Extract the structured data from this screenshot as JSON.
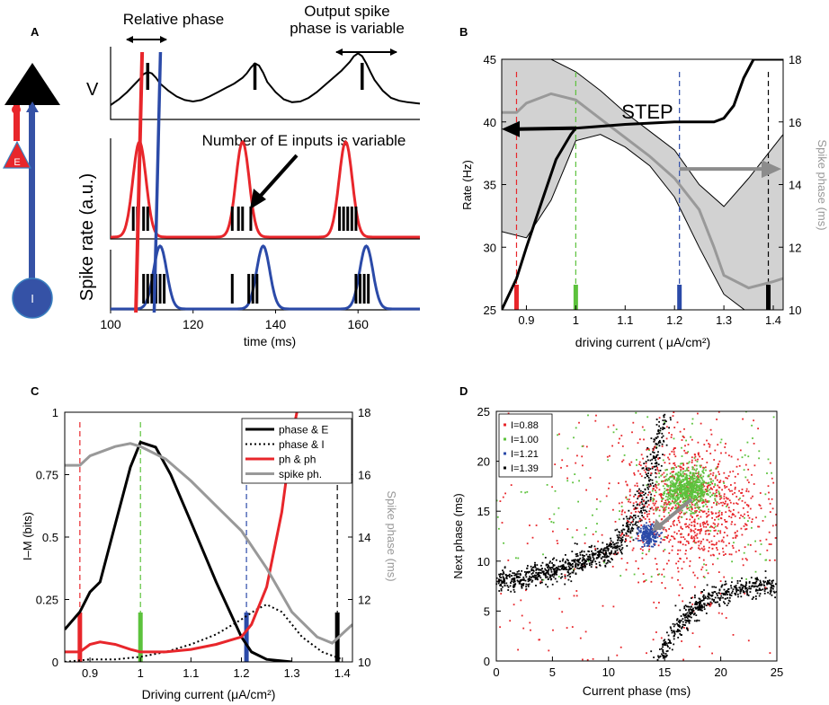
{
  "panel_labels": {
    "a": "A",
    "b": "B",
    "c": "C",
    "d": "D"
  },
  "colors": {
    "red": "#e8262b",
    "blue": "#2b4aa8",
    "green": "#5cc23c",
    "black": "#000000",
    "gray": "#999999",
    "shade": "#d2d2d2"
  },
  "chart_data": [
    {
      "id": "A",
      "type": "line",
      "title": "",
      "annotations": {
        "relative_phase": "Relative phase",
        "output_phase_1": "Output spike",
        "output_phase_2": "phase is variable",
        "num_inputs": "Number of E inputs is variable"
      },
      "neuron": {
        "e_label": "E",
        "i_label": "I"
      },
      "xlabel": "time (ms)",
      "ylabel": "Spike rate (a.u.)",
      "v_label": "V",
      "xlim": [
        100,
        175
      ],
      "xticks": [
        100,
        120,
        140,
        160
      ],
      "voltage": {
        "x": [
          100,
          102,
          104,
          106,
          107,
          108,
          109,
          110,
          111,
          112,
          114,
          116,
          118,
          120,
          122,
          124,
          126,
          128,
          130,
          132,
          133,
          134,
          135,
          136,
          137,
          138,
          140,
          142,
          144,
          146,
          148,
          150,
          152,
          154,
          156,
          158,
          159,
          160,
          161,
          162,
          163,
          164,
          166,
          168,
          170,
          172,
          175
        ],
        "y": [
          0.2,
          0.28,
          0.38,
          0.5,
          0.56,
          0.63,
          0.66,
          0.64,
          0.58,
          0.5,
          0.4,
          0.32,
          0.27,
          0.25,
          0.27,
          0.32,
          0.38,
          0.44,
          0.5,
          0.58,
          0.64,
          0.72,
          0.78,
          0.75,
          0.65,
          0.52,
          0.38,
          0.28,
          0.24,
          0.25,
          0.3,
          0.38,
          0.48,
          0.58,
          0.68,
          0.8,
          0.88,
          0.92,
          0.88,
          0.78,
          0.66,
          0.55,
          0.4,
          0.3,
          0.26,
          0.24,
          0.22
        ]
      },
      "v_spike_marks": [
        109,
        135,
        161
      ],
      "e_rate_peaks": [
        107,
        132,
        157
      ],
      "e_spikes": [
        [
          105.5,
          106.5,
          108,
          109
        ],
        [
          129.5,
          131,
          132,
          134
        ],
        [
          155.5,
          156.5,
          157.5,
          158.5,
          159.5
        ]
      ],
      "i_rate_peaks": [
        112,
        137,
        162
      ],
      "i_spikes": [
        [
          108,
          109,
          110,
          111,
          112,
          113
        ],
        [
          129.5,
          133.5,
          134.5,
          135.5
        ],
        [
          159.5,
          160.5,
          161.5,
          162.5
        ]
      ],
      "e_ref_line": 107,
      "i_ref_line": 111
    },
    {
      "id": "B",
      "type": "line",
      "xlabel": "driving current ( μA/cm²)",
      "xlabel_html_unit": "μ",
      "ylabel_left": "Rate (Hz)",
      "ylabel_right": "Spike phase (ms)",
      "xlim": [
        0.85,
        1.42
      ],
      "ylim_left": [
        25,
        45
      ],
      "ylim_right": [
        10,
        18
      ],
      "xticks": [
        0.9,
        1,
        1.1,
        1.2,
        1.3,
        1.4
      ],
      "xtick_labels": [
        "0.9",
        "1",
        "1.1",
        "1.2",
        "1.3",
        "1.4"
      ],
      "yticks_left": [
        25,
        30,
        35,
        40,
        45
      ],
      "yticks_right": [
        10,
        12,
        14,
        16,
        18
      ],
      "step_label": "STEP",
      "rate": {
        "x": [
          0.85,
          0.88,
          0.9,
          0.93,
          0.96,
          0.99,
          1.0,
          1.1,
          1.2,
          1.25,
          1.28,
          1.3,
          1.32,
          1.34,
          1.36,
          1.42
        ],
        "y": [
          25,
          27.5,
          30,
          33.5,
          37,
          39,
          39.5,
          39.8,
          40,
          40,
          40,
          40.3,
          41.3,
          43.5,
          45,
          45
        ]
      },
      "phase_mean": {
        "x": [
          0.85,
          0.88,
          0.9,
          0.95,
          1.0,
          1.05,
          1.1,
          1.15,
          1.2,
          1.25,
          1.28,
          1.3,
          1.35,
          1.4,
          1.42
        ],
        "y": [
          16.3,
          16.3,
          16.6,
          16.9,
          16.7,
          16.1,
          15.5,
          14.9,
          14.2,
          13.2,
          12.0,
          11.1,
          10.7,
          10.9,
          11.0
        ]
      },
      "phase_upper": {
        "x": [
          0.85,
          0.9,
          0.95,
          1.0,
          1.05,
          1.1,
          1.15,
          1.2,
          1.25,
          1.3,
          1.35,
          1.4,
          1.42
        ],
        "y": [
          18,
          18,
          18,
          17.6,
          17.0,
          16.3,
          15.7,
          15.1,
          14.0,
          13.3,
          14.2,
          15.2,
          15.6
        ]
      },
      "phase_lower": {
        "x": [
          0.85,
          0.9,
          0.95,
          1.0,
          1.05,
          1.1,
          1.15,
          1.2,
          1.25,
          1.3,
          1.35,
          1.42
        ],
        "y": [
          12.5,
          12.3,
          13.5,
          15.4,
          15.6,
          15.2,
          14.6,
          13.6,
          12.0,
          10.5,
          9.9,
          9.7
        ]
      },
      "vlines": [
        {
          "x": 0.88,
          "color": "red"
        },
        {
          "x": 1.0,
          "color": "green"
        },
        {
          "x": 1.21,
          "color": "blue"
        },
        {
          "x": 1.39,
          "color": "black"
        }
      ],
      "arrow_rate": {
        "from": 1.0,
        "to": 0.85,
        "y": 39.5
      },
      "arrow_phase": {
        "from": 1.21,
        "to": 1.42,
        "y": 14.5
      }
    },
    {
      "id": "C",
      "type": "line",
      "xlabel": "Driving current (μA/cm²)",
      "ylabel_left": "I–M (bits)",
      "ylabel_right": "Spike phase (ms)",
      "xlim": [
        0.85,
        1.42
      ],
      "ylim_left": [
        0,
        1
      ],
      "ylim_right": [
        10,
        18
      ],
      "xticks": [
        0.9,
        1,
        1.1,
        1.2,
        1.3,
        1.4
      ],
      "xtick_labels": [
        "0.9",
        "1",
        "1.1",
        "1.2",
        "1.3",
        "1.4"
      ],
      "yticks_left": [
        0,
        0.25,
        0.5,
        0.75,
        1
      ],
      "ytick_labels_left": [
        "0",
        "0.25",
        "0.5",
        "0.75",
        "1"
      ],
      "yticks_right": [
        10,
        12,
        14,
        16,
        18
      ],
      "series": [
        {
          "name": "phase & E",
          "style": "black",
          "x": [
            0.85,
            0.88,
            0.9,
            0.92,
            0.95,
            0.98,
            1.0,
            1.03,
            1.06,
            1.1,
            1.15,
            1.2,
            1.22,
            1.25,
            1.3
          ],
          "y": [
            0.13,
            0.2,
            0.28,
            0.32,
            0.55,
            0.78,
            0.88,
            0.86,
            0.75,
            0.56,
            0.32,
            0.1,
            0.04,
            0.01,
            0.0
          ]
        },
        {
          "name": "phase & I",
          "style": "dotted",
          "x": [
            0.85,
            0.9,
            0.95,
            1.0,
            1.05,
            1.1,
            1.15,
            1.2,
            1.23,
            1.25,
            1.28,
            1.32,
            1.36,
            1.4
          ],
          "y": [
            0.0,
            0.01,
            0.01,
            0.02,
            0.04,
            0.07,
            0.11,
            0.17,
            0.21,
            0.23,
            0.2,
            0.1,
            0.04,
            0.01
          ]
        },
        {
          "name": "ph & ph",
          "style": "red",
          "x": [
            0.85,
            0.88,
            0.9,
            0.92,
            0.95,
            0.98,
            1.0,
            1.05,
            1.1,
            1.15,
            1.2,
            1.22,
            1.25,
            1.28,
            1.3,
            1.31
          ],
          "y": [
            0.04,
            0.04,
            0.07,
            0.08,
            0.07,
            0.05,
            0.04,
            0.04,
            0.05,
            0.07,
            0.1,
            0.15,
            0.3,
            0.6,
            0.9,
            1.0
          ]
        },
        {
          "name": "spike ph.",
          "style": "gray",
          "axis": "right",
          "x": [
            0.85,
            0.88,
            0.9,
            0.95,
            0.98,
            1.0,
            1.05,
            1.1,
            1.15,
            1.2,
            1.25,
            1.3,
            1.35,
            1.38,
            1.42
          ],
          "y": [
            16.3,
            16.3,
            16.6,
            16.9,
            17.0,
            16.9,
            16.5,
            15.8,
            15.0,
            14.2,
            13.0,
            11.6,
            10.8,
            10.6,
            11.2
          ]
        }
      ],
      "legend": [
        "phase & E",
        "phase & I",
        "ph & ph",
        "spike ph."
      ],
      "vlines": [
        {
          "x": 0.88,
          "color": "red"
        },
        {
          "x": 1.0,
          "color": "green"
        },
        {
          "x": 1.21,
          "color": "blue"
        },
        {
          "x": 1.39,
          "color": "black"
        }
      ]
    },
    {
      "id": "D",
      "type": "scatter",
      "xlabel": "Current phase (ms)",
      "ylabel": "Next phase (ms)",
      "xlim": [
        0,
        25
      ],
      "ylim": [
        0,
        25
      ],
      "xticks": [
        0,
        5,
        10,
        15,
        20,
        25
      ],
      "yticks": [
        0,
        5,
        10,
        15,
        20,
        25
      ],
      "legend": [
        "I=0.88",
        "I=1.00",
        "I=1.21",
        "I=1.39"
      ],
      "series": [
        {
          "name": "I=0.88",
          "color": "red",
          "center": [
            17.2,
            15.5
          ],
          "spread": [
            3.0,
            3.2
          ],
          "n": 900,
          "background": 220
        },
        {
          "name": "I=1.00",
          "color": "green",
          "center": [
            17.0,
            17.2
          ],
          "spread": [
            1.1,
            1.0
          ],
          "n": 700,
          "background": 150
        },
        {
          "name": "I=1.21",
          "color": "blue",
          "center": [
            13.6,
            12.6
          ],
          "spread": [
            0.45,
            0.5
          ],
          "n": 200
        },
        {
          "name": "I=1.39",
          "color": "black",
          "branch1": {
            "x": [
              0,
              3,
              6,
              8,
              10,
              11,
              12,
              13,
              14,
              15
            ],
            "y": [
              8,
              8.4,
              9.3,
              10.0,
              11.0,
              12.0,
              13.5,
              16.0,
              20.0,
              25.0
            ]
          },
          "branch2": {
            "x": [
              14.5,
              15.5,
              17,
              19,
              21,
              23,
              25
            ],
            "y": [
              0,
              2.3,
              4.5,
              6.3,
              7.0,
              7.4,
              7.6
            ]
          }
        }
      ],
      "arrow": {
        "from": [
          17.4,
          16.2
        ],
        "to": [
          13.9,
          13.0
        ]
      }
    }
  ]
}
